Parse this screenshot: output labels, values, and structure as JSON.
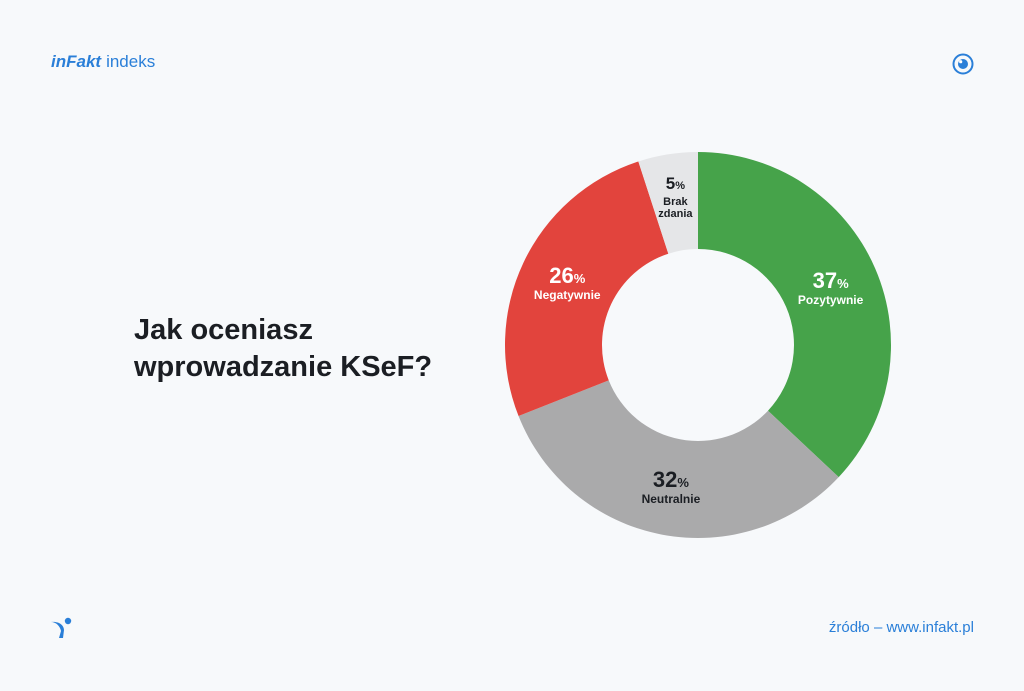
{
  "header": {
    "brand_logo": "inFakt",
    "brand_suffix": "indeks",
    "logo_icon": "eye-icon"
  },
  "question": {
    "line1": "Jak oceniasz",
    "line2": "wprowadzanie KSeF?"
  },
  "footer": {
    "logo_icon": "bird-icon",
    "source": "źródło – www.infakt.pl"
  },
  "chart_data": {
    "type": "pie",
    "donut": true,
    "unit": "%",
    "slices": [
      {
        "label": "Pozytywnie",
        "value": 37,
        "color": "#46a34a",
        "text_color": "#ffffff"
      },
      {
        "label": "Neutralnie",
        "value": 32,
        "color": "#aaaaab",
        "text_color": "#1b1e23"
      },
      {
        "label": "Negatywnie",
        "value": 26,
        "color": "#e2443d",
        "text_color": "#ffffff"
      },
      {
        "label": "Brak zdania",
        "value": 5,
        "color": "#e5e6e8",
        "text_color": "#1b1e23"
      }
    ]
  }
}
